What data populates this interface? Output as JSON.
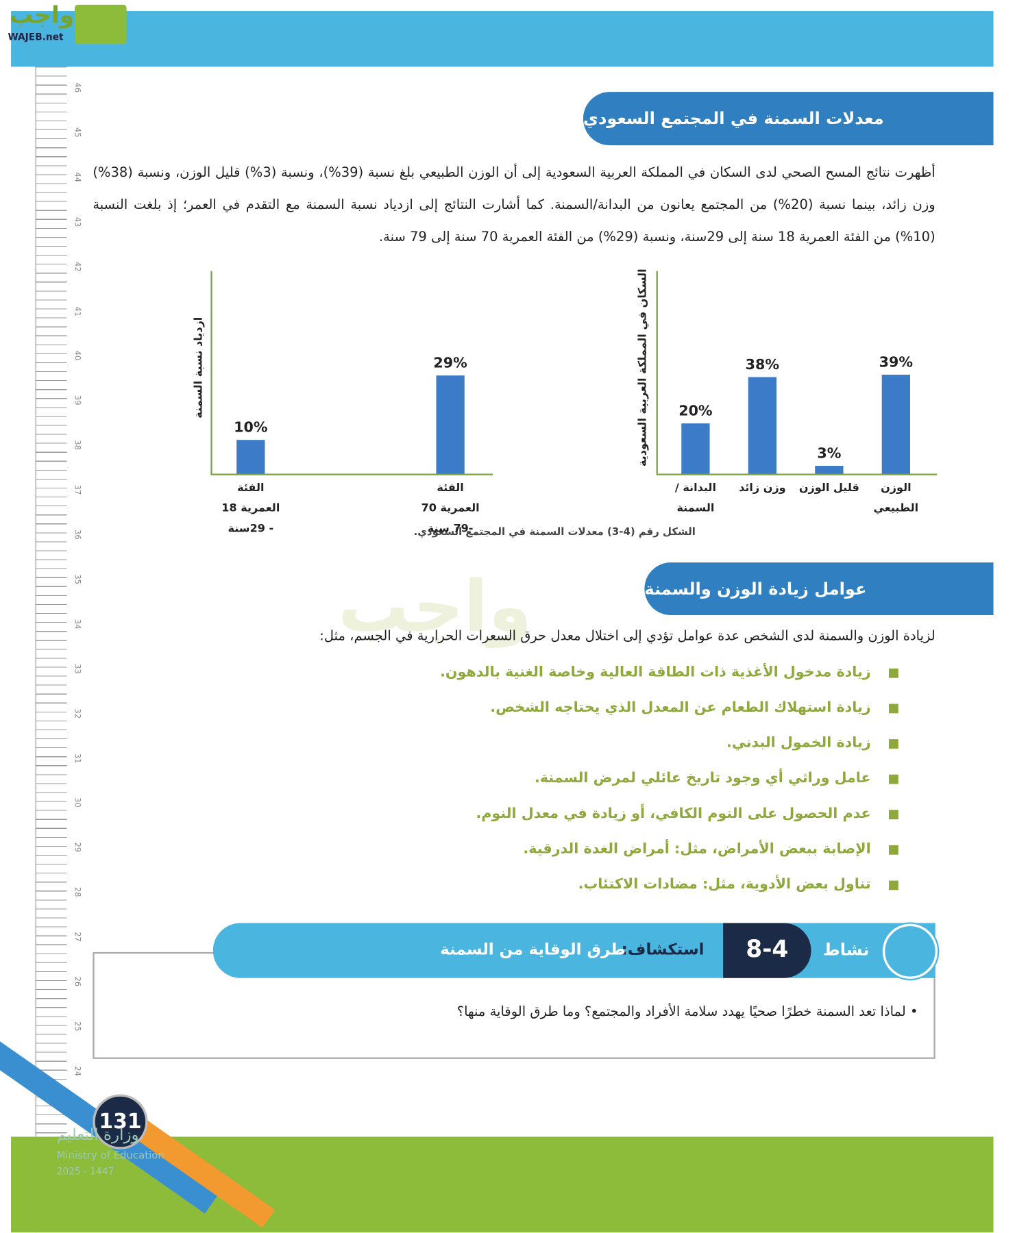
{
  "header": {
    "logo_ar": "واجب",
    "logo_en": "WAJEB.net"
  },
  "ruler": [
    46,
    45,
    44,
    43,
    42,
    41,
    40,
    39,
    38,
    37,
    36,
    35,
    34,
    33,
    32,
    31,
    30,
    29,
    28,
    27,
    26,
    25,
    24
  ],
  "section1": {
    "title": "معدلات السمنة في المجتمع السعودي",
    "paragraph": "أظهرت نتائج المسح الصحي لدى السكان في المملكة العربية السعودية إلى أن الوزن الطبيعي بلغ نسبة (39%)، ونسبة (3%) قليل الوزن، ونسبة (38%) وزن زائد، بينما نسبة (20%) من المجتمع يعانون من البدانة/السمنة. كما أشارت النتائج إلى ازدياد نسبة السمنة مع التقدم في العمر؛ إذ بلغت النسبة (10%) من الفئة العمرية 18 سنة إلى 29سنة، ونسبة (29%) من الفئة العمرية 70 سنة إلى 79 سنة."
  },
  "charts": [
    {
      "type": "bar",
      "y_label": "السكان في المملكة العربية السعودية",
      "categories": [
        "الوزن الطبيعي",
        "قليل الوزن",
        "وزن زائد",
        "البدانة / السمنة"
      ],
      "values": [
        39,
        3,
        38,
        20
      ],
      "value_labels": [
        "39%",
        "3%",
        "38%",
        "20%"
      ],
      "ylim": [
        0,
        80
      ],
      "color": "#3b7bc8"
    },
    {
      "type": "bar",
      "y_label": "ازدياد نسبة السمنة",
      "categories": [
        "الفئة العمرية 70 -79 سنة",
        "الفئة العمرية 18 - 29سنة"
      ],
      "values": [
        29,
        10
      ],
      "value_labels": [
        "29%",
        "10%"
      ],
      "ylim": [
        0,
        60
      ],
      "color": "#3b7bc8"
    }
  ],
  "figure_caption": "الشكل رقم (4-3)  معدلات السمنة في المجتمع السعودي.",
  "section2": {
    "title": "عوامل زيادة الوزن والسمنة",
    "intro": "لزيادة الوزن والسمنة لدى الشخص عدة عوامل تؤدي إلى اختلال معدل حرق السعرات الحرارية في الجسم، مثل:",
    "items": [
      "زيادة مدخول الأغذية ذات الطاقة العالية وخاصة الغنية بالدهون.",
      "زيادة استهلاك الطعام عن المعدل الذي يحتاجه الشخص.",
      "زيادة الخمول البدني.",
      "عامل وراثي أي وجود تاريخ عائلي لمرض السمنة.",
      "عدم الحصول على النوم الكافي، أو زيادة في معدل النوم.",
      "الإصابة ببعض الأمراض، مثل: أمراض الغدة الدرقية.",
      "تناول بعض الأدوية، مثل: مضادات الاكتئاب."
    ]
  },
  "activity": {
    "label": "نشاط",
    "number": "8-4",
    "kind": "استكشاف:",
    "title": "طرق الوقاية من السمنة",
    "question": "لماذا تعد السمنة خطرًا صحيًا يهدد سلامة الأفراد والمجتمع؟ وما طرق الوقاية منها؟"
  },
  "footer": {
    "page_number": 131,
    "ministry_ar": "وزارة التعليم",
    "ministry_en": "Ministry of Education",
    "year": "2025 - 1447"
  }
}
